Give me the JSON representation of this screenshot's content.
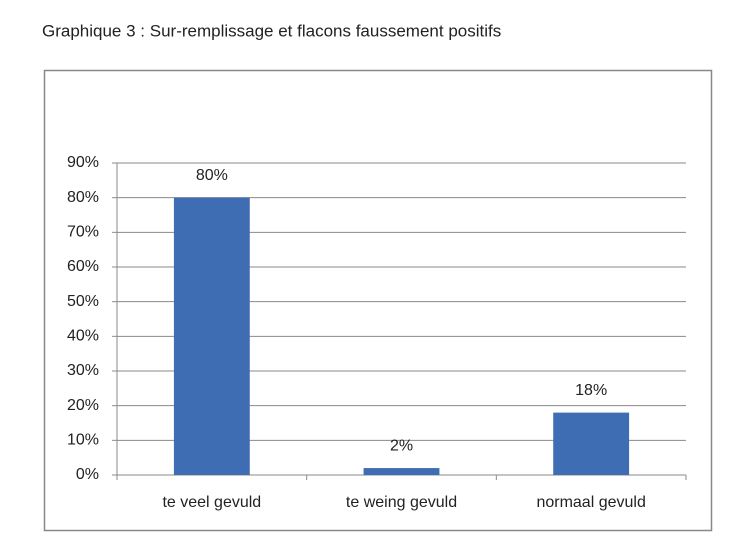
{
  "chart_data": {
    "type": "bar",
    "title": "Graphique 3 : Sur-remplissage et flacons faussement positifs",
    "categories": [
      "te veel gevuld",
      "te weing gevuld",
      "normaal gevuld"
    ],
    "values": [
      80,
      2,
      18
    ],
    "value_labels": [
      "80%",
      "2%",
      "18%"
    ],
    "color": "#3f6db3",
    "ylim": [
      0,
      90
    ],
    "yticks": [
      {
        "value": 0,
        "label": "0%"
      },
      {
        "value": 10,
        "label": "10%"
      },
      {
        "value": 20,
        "label": "20%"
      },
      {
        "value": 30,
        "label": "30%"
      },
      {
        "value": 40,
        "label": "40%"
      },
      {
        "value": 50,
        "label": "50%"
      },
      {
        "value": 60,
        "label": "60%"
      },
      {
        "value": 70,
        "label": "70%"
      },
      {
        "value": 80,
        "label": "80%"
      },
      {
        "value": 90,
        "label": "90%"
      }
    ],
    "grid": true
  }
}
